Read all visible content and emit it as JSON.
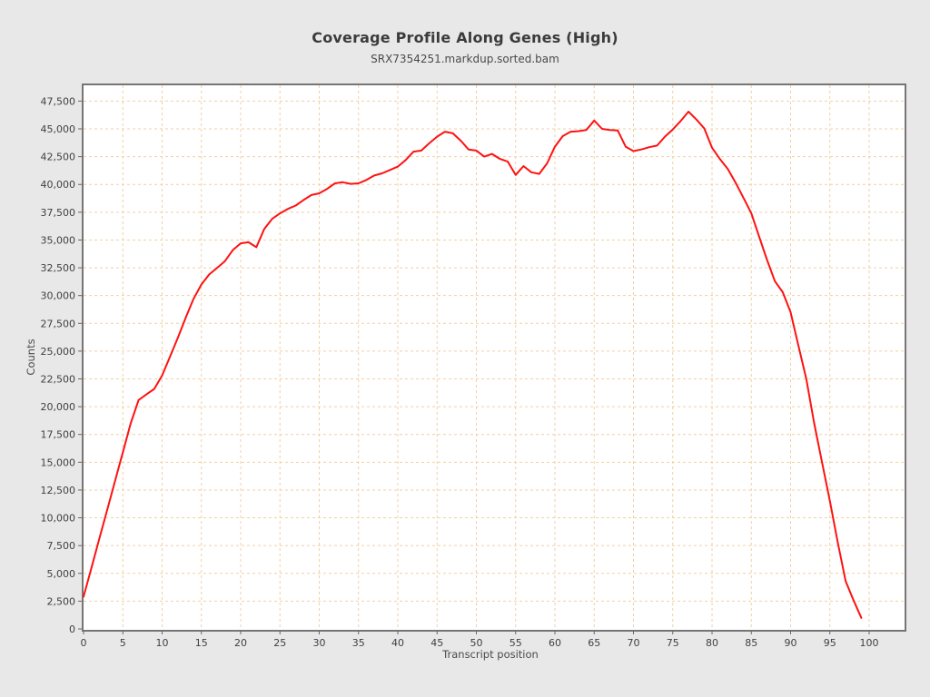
{
  "header": {
    "title": "Coverage Profile Along Genes (High)",
    "subtitle": "SRX7354251.markdup.sorted.bam"
  },
  "chart_data": {
    "type": "line",
    "title": "Coverage Profile Along Genes (High)",
    "subtitle": "SRX7354251.markdup.sorted.bam",
    "series_name": "SRX7354251.markdup.sorted.bam",
    "xlabel": "Transcript position",
    "ylabel": "Counts",
    "x_start": 0,
    "x_step": 1,
    "values": [
      2900,
      5500,
      8100,
      10700,
      13300,
      15900,
      18500,
      20600,
      21100,
      21600,
      22800,
      24500,
      26200,
      28000,
      29700,
      31000,
      31900,
      32500,
      33100,
      34100,
      34700,
      34800,
      34350,
      36000,
      36900,
      37400,
      37800,
      38100,
      38600,
      39050,
      39200,
      39600,
      40100,
      40200,
      40050,
      40100,
      40400,
      40800,
      41000,
      41300,
      41600,
      42200,
      42950,
      43050,
      43700,
      44300,
      44750,
      44600,
      43950,
      43150,
      43050,
      42500,
      42750,
      42300,
      42050,
      40850,
      41650,
      41100,
      40950,
      41900,
      43400,
      44350,
      44750,
      44800,
      44900,
      45750,
      45000,
      44900,
      44850,
      43400,
      43000,
      43150,
      43350,
      43500,
      44300,
      44950,
      45700,
      46550,
      45850,
      45050,
      43300,
      42300,
      41400,
      40150,
      38800,
      37400,
      35300,
      33200,
      31300,
      30300,
      28500,
      25500,
      22500,
      18500,
      15000,
      11500,
      7800,
      4300,
      2600,
      1000
    ],
    "x_ticks": [
      0,
      5,
      10,
      15,
      20,
      25,
      30,
      35,
      40,
      45,
      50,
      55,
      60,
      65,
      70,
      75,
      80,
      85,
      90,
      95,
      100
    ],
    "y_ticks": [
      0,
      2500,
      5000,
      7500,
      10000,
      12500,
      15000,
      17500,
      20000,
      22500,
      25000,
      27500,
      30000,
      32500,
      35000,
      37500,
      40000,
      42500,
      45000,
      47500
    ],
    "xlim": [
      0,
      104.4
    ],
    "ylim": [
      0,
      48950
    ],
    "grid": "dashed",
    "legend": "none",
    "colors": {
      "line": "#fe1212",
      "grid": "#f2cfa4",
      "plot_background": "#ffffff",
      "page_background": "#e8e8e8",
      "border": "#757575",
      "tick_text": "#3f3f3f"
    }
  }
}
